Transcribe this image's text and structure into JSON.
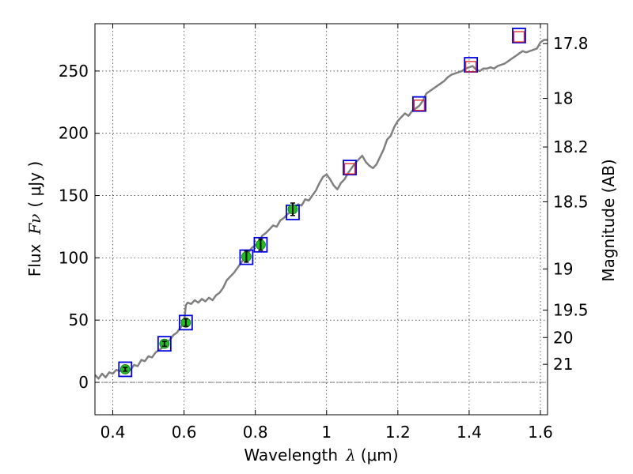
{
  "chart_data": {
    "type": "scatter",
    "xlabel_prefix": "Wavelength",
    "xlabel_symbol": "λ",
    "xlabel_unit": "(μm)",
    "ylabel_prefix": "Flux",
    "ylabel_symbol": "Fν",
    "ylabel_unit": "( μJy )",
    "y2label": "Magnitude (AB)",
    "xlim": [
      0.35,
      1.62
    ],
    "ylim": [
      -26,
      288
    ],
    "grid": true,
    "x_ticks": [
      {
        "value": 0.4,
        "label": "0.4"
      },
      {
        "value": 0.6,
        "label": "0.6"
      },
      {
        "value": 0.8,
        "label": "0.8"
      },
      {
        "value": 1.0,
        "label": "1"
      },
      {
        "value": 1.2,
        "label": "1.2"
      },
      {
        "value": 1.4,
        "label": "1.4"
      },
      {
        "value": 1.6,
        "label": "1.6"
      }
    ],
    "y_ticks": [
      {
        "value": 0,
        "label": "0"
      },
      {
        "value": 50,
        "label": "50"
      },
      {
        "value": 100,
        "label": "100"
      },
      {
        "value": 150,
        "label": "150"
      },
      {
        "value": 200,
        "label": "200"
      },
      {
        "value": 250,
        "label": "250"
      }
    ],
    "magnitude_ticks": [
      {
        "flux": 272,
        "label": "17.8"
      },
      {
        "flux": 228,
        "label": "18"
      },
      {
        "flux": 189,
        "label": "18.2"
      },
      {
        "flux": 145,
        "label": "18.5"
      },
      {
        "flux": 91,
        "label": "19"
      },
      {
        "flux": 58,
        "label": "19.5"
      },
      {
        "flux": 36,
        "label": "20"
      },
      {
        "flux": 14.5,
        "label": "21"
      }
    ],
    "series": [
      {
        "name": "observed photometry",
        "marker": "circle",
        "color": "#22bb22",
        "points": [
          {
            "x": 0.435,
            "y": 10.5,
            "err": 1.5
          },
          {
            "x": 0.545,
            "y": 31.0,
            "err": 2.0
          },
          {
            "x": 0.605,
            "y": 48.0,
            "err": 3.0
          },
          {
            "x": 0.775,
            "y": 101.0,
            "err": 4.5
          },
          {
            "x": 0.815,
            "y": 110.5,
            "err": 4.5
          },
          {
            "x": 0.905,
            "y": 139.0,
            "err": 5.0
          }
        ]
      },
      {
        "name": "model photometry",
        "marker": "square",
        "color": "#0000dd",
        "points": [
          {
            "x": 0.435,
            "y": 10.5
          },
          {
            "x": 0.545,
            "y": 31.0
          },
          {
            "x": 0.605,
            "y": 48.0
          },
          {
            "x": 0.775,
            "y": 100.5
          },
          {
            "x": 0.815,
            "y": 110.5
          },
          {
            "x": 0.905,
            "y": 136.5
          },
          {
            "x": 1.065,
            "y": 172.5
          },
          {
            "x": 1.26,
            "y": 223.5
          },
          {
            "x": 1.405,
            "y": 255.0
          },
          {
            "x": 1.54,
            "y": 278.5
          }
        ]
      },
      {
        "name": "predicted photometry",
        "marker": "square",
        "color": "#dd2222",
        "points": [
          {
            "x": 1.065,
            "y": 171.5
          },
          {
            "x": 1.26,
            "y": 222.5
          },
          {
            "x": 1.405,
            "y": 253.5
          },
          {
            "x": 1.54,
            "y": 277.5
          }
        ]
      },
      {
        "name": "model spectrum",
        "marker": "line",
        "color": "#808080",
        "points": [
          [
            0.35,
            6
          ],
          [
            0.36,
            3
          ],
          [
            0.37,
            7
          ],
          [
            0.38,
            4
          ],
          [
            0.39,
            8
          ],
          [
            0.4,
            7
          ],
          [
            0.41,
            10
          ],
          [
            0.42,
            9
          ],
          [
            0.43,
            11
          ],
          [
            0.44,
            12
          ],
          [
            0.45,
            10
          ],
          [
            0.46,
            14
          ],
          [
            0.47,
            13
          ],
          [
            0.48,
            18
          ],
          [
            0.49,
            17
          ],
          [
            0.5,
            21
          ],
          [
            0.51,
            20
          ],
          [
            0.52,
            24
          ],
          [
            0.53,
            26
          ],
          [
            0.54,
            28
          ],
          [
            0.55,
            32
          ],
          [
            0.56,
            34
          ],
          [
            0.57,
            38
          ],
          [
            0.58,
            40
          ],
          [
            0.59,
            44
          ],
          [
            0.6,
            48
          ],
          [
            0.605,
            62
          ],
          [
            0.61,
            64
          ],
          [
            0.62,
            63
          ],
          [
            0.63,
            66
          ],
          [
            0.64,
            64
          ],
          [
            0.65,
            67
          ],
          [
            0.66,
            65
          ],
          [
            0.67,
            68
          ],
          [
            0.68,
            66
          ],
          [
            0.69,
            70
          ],
          [
            0.7,
            72
          ],
          [
            0.71,
            76
          ],
          [
            0.72,
            82
          ],
          [
            0.73,
            85
          ],
          [
            0.74,
            88
          ],
          [
            0.75,
            92
          ],
          [
            0.76,
            96
          ],
          [
            0.77,
            100
          ],
          [
            0.78,
            104
          ],
          [
            0.79,
            108
          ],
          [
            0.8,
            110
          ],
          [
            0.81,
            113
          ],
          [
            0.82,
            118
          ],
          [
            0.83,
            120
          ],
          [
            0.84,
            123
          ],
          [
            0.85,
            126
          ],
          [
            0.86,
            125
          ],
          [
            0.87,
            130
          ],
          [
            0.88,
            132
          ],
          [
            0.89,
            135
          ],
          [
            0.9,
            137
          ],
          [
            0.91,
            140
          ],
          [
            0.92,
            143
          ],
          [
            0.93,
            142
          ],
          [
            0.94,
            147
          ],
          [
            0.95,
            146
          ],
          [
            0.96,
            150
          ],
          [
            0.97,
            154
          ],
          [
            0.98,
            160
          ],
          [
            0.99,
            165
          ],
          [
            1.0,
            167
          ],
          [
            1.01,
            163
          ],
          [
            1.02,
            158
          ],
          [
            1.03,
            155
          ],
          [
            1.04,
            160
          ],
          [
            1.05,
            163
          ],
          [
            1.06,
            168
          ],
          [
            1.07,
            172
          ],
          [
            1.08,
            176
          ],
          [
            1.09,
            179
          ],
          [
            1.1,
            182
          ],
          [
            1.11,
            177
          ],
          [
            1.12,
            174
          ],
          [
            1.13,
            172
          ],
          [
            1.14,
            175
          ],
          [
            1.15,
            181
          ],
          [
            1.16,
            187
          ],
          [
            1.17,
            195
          ],
          [
            1.18,
            198
          ],
          [
            1.19,
            205
          ],
          [
            1.2,
            210
          ],
          [
            1.21,
            213
          ],
          [
            1.22,
            216
          ],
          [
            1.23,
            214
          ],
          [
            1.24,
            218
          ],
          [
            1.25,
            220
          ],
          [
            1.26,
            222
          ],
          [
            1.27,
            226
          ],
          [
            1.28,
            232
          ],
          [
            1.29,
            234
          ],
          [
            1.3,
            236
          ],
          [
            1.31,
            238
          ],
          [
            1.32,
            240
          ],
          [
            1.33,
            242
          ],
          [
            1.34,
            245
          ],
          [
            1.35,
            247
          ],
          [
            1.36,
            248
          ],
          [
            1.37,
            249
          ],
          [
            1.38,
            250
          ],
          [
            1.39,
            252
          ],
          [
            1.4,
            253
          ],
          [
            1.41,
            254
          ],
          [
            1.42,
            251
          ],
          [
            1.43,
            250
          ],
          [
            1.44,
            252
          ],
          [
            1.45,
            252
          ],
          [
            1.46,
            253
          ],
          [
            1.47,
            252
          ],
          [
            1.48,
            254
          ],
          [
            1.49,
            255
          ],
          [
            1.5,
            256
          ],
          [
            1.51,
            258
          ],
          [
            1.52,
            260
          ],
          [
            1.53,
            262
          ],
          [
            1.54,
            264
          ],
          [
            1.55,
            266
          ],
          [
            1.56,
            265
          ],
          [
            1.57,
            266
          ],
          [
            1.58,
            267
          ],
          [
            1.59,
            268
          ],
          [
            1.6,
            273
          ],
          [
            1.61,
            275
          ],
          [
            1.62,
            275
          ]
        ]
      }
    ]
  }
}
